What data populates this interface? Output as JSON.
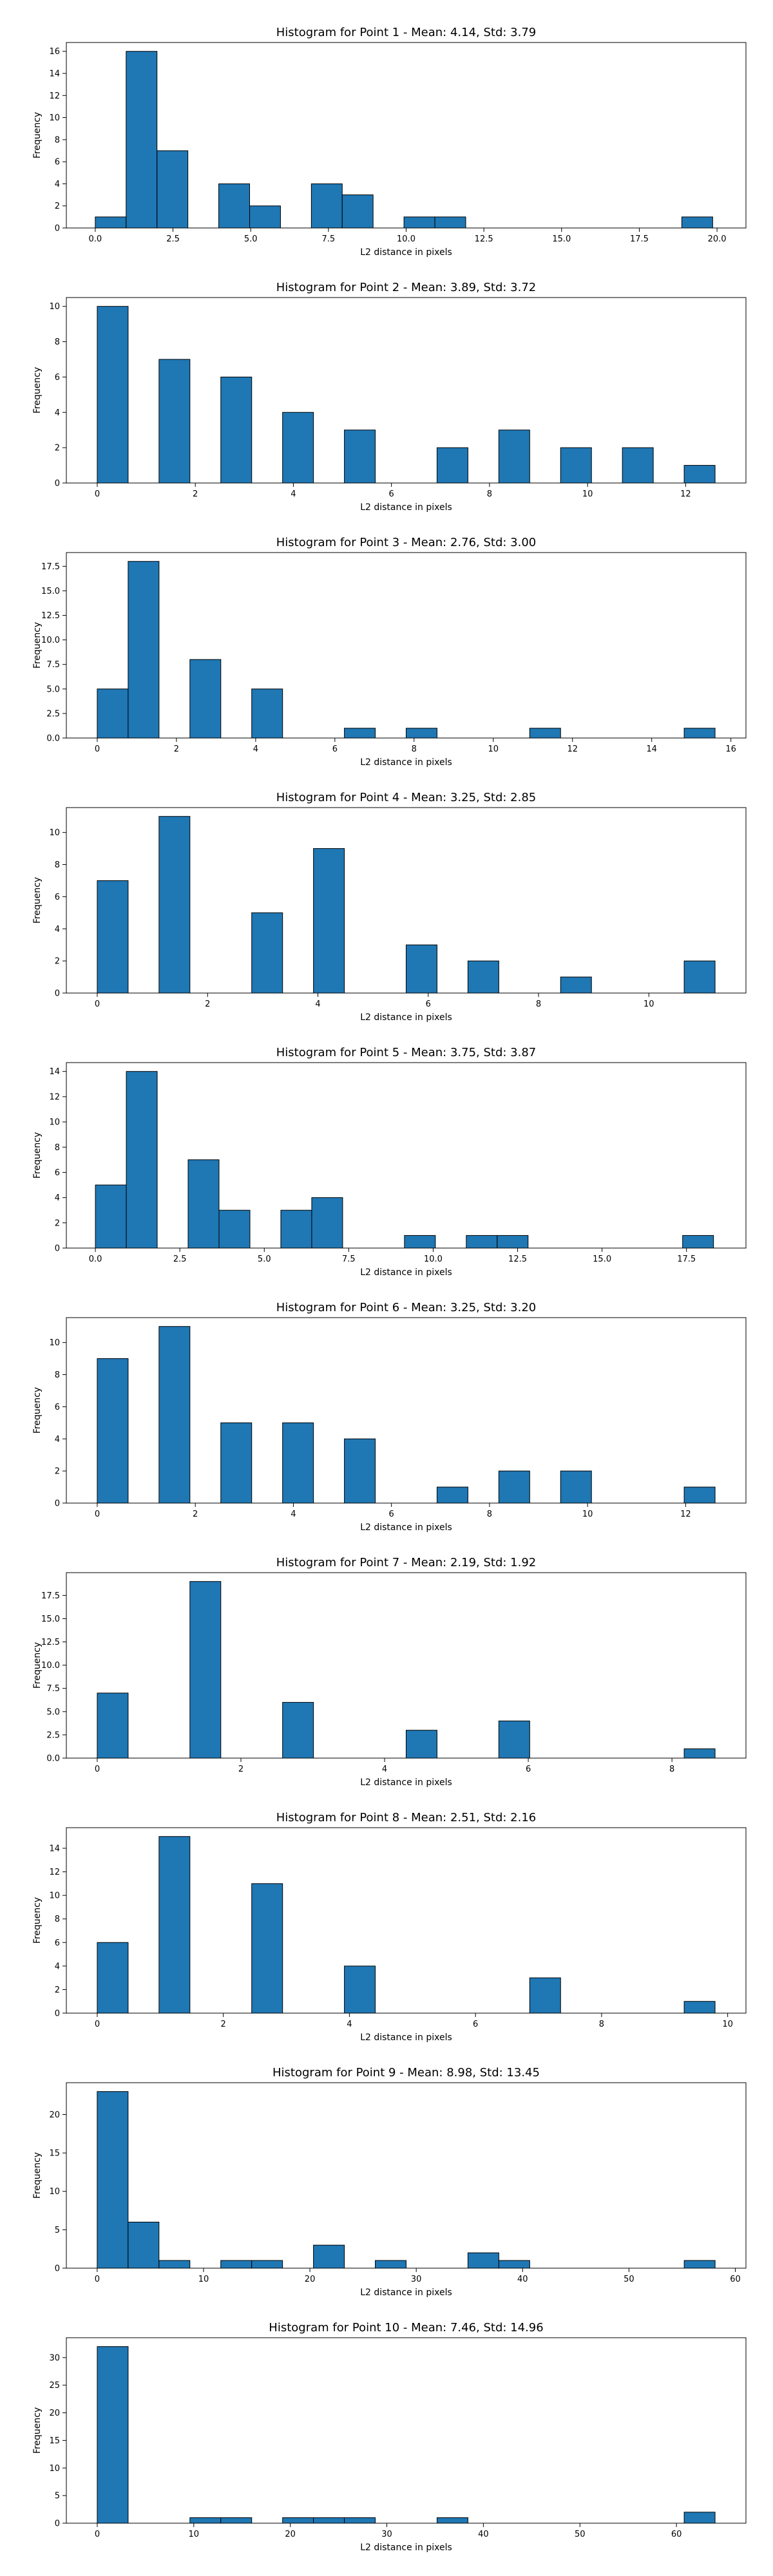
{
  "colors": {
    "bar_fill": "#1f77b4",
    "bar_edge": "#000000",
    "background": "#ffffff"
  },
  "chart_data": [
    {
      "type": "bar",
      "title": "Histogram for Point 1 - Mean: 4.14, Std: 3.79",
      "xlabel": "L2 distance in pixels",
      "ylabel": "Frequency",
      "xlim": [
        -0.93,
        20.93
      ],
      "ylim": [
        0,
        16.8
      ],
      "xticks": [
        0.0,
        2.5,
        5.0,
        7.5,
        10.0,
        12.5,
        15.0,
        17.5,
        20.0
      ],
      "xtick_labels": [
        "0.0",
        "2.5",
        "5.0",
        "7.5",
        "10.0",
        "12.5",
        "15.0",
        "17.5",
        "20.0"
      ],
      "yticks": [
        0,
        2,
        4,
        6,
        8,
        10,
        12,
        14,
        16
      ],
      "ytick_labels": [
        "0",
        "2",
        "4",
        "6",
        "8",
        "10",
        "12",
        "14",
        "16"
      ],
      "bin_start": 0.0,
      "bin_width": 0.993,
      "counts": [
        1,
        16,
        7,
        0,
        4,
        2,
        0,
        4,
        3,
        0,
        1,
        1,
        0,
        0,
        0,
        0,
        0,
        0,
        0,
        1
      ]
    },
    {
      "type": "bar",
      "title": "Histogram for Point 2 - Mean: 3.89, Std: 3.72",
      "xlabel": "L2 distance in pixels",
      "ylabel": "Frequency",
      "xlim": [
        -0.63,
        13.23
      ],
      "ylim": [
        0,
        10.5
      ],
      "xticks": [
        0,
        2,
        4,
        6,
        8,
        10,
        12
      ],
      "xtick_labels": [
        "0",
        "2",
        "4",
        "6",
        "8",
        "10",
        "12"
      ],
      "yticks": [
        0,
        2,
        4,
        6,
        8,
        10
      ],
      "ytick_labels": [
        "0",
        "2",
        "4",
        "6",
        "8",
        "10"
      ],
      "bin_start": 0.0,
      "bin_width": 0.63,
      "counts": [
        10,
        0,
        7,
        0,
        6,
        0,
        4,
        0,
        3,
        0,
        0,
        2,
        0,
        3,
        0,
        2,
        0,
        2,
        0,
        1
      ]
    },
    {
      "type": "bar",
      "title": "Histogram for Point 3 - Mean: 2.76, Std: 3.00",
      "xlabel": "L2 distance in pixels",
      "ylabel": "Frequency",
      "xlim": [
        -0.78,
        16.38
      ],
      "ylim": [
        0,
        18.9
      ],
      "xticks": [
        0,
        2,
        4,
        6,
        8,
        10,
        12,
        14,
        16
      ],
      "xtick_labels": [
        "0",
        "2",
        "4",
        "6",
        "8",
        "10",
        "12",
        "14",
        "16"
      ],
      "yticks": [
        0,
        2.5,
        5,
        7.5,
        10,
        12.5,
        15,
        17.5
      ],
      "ytick_labels": [
        "0.0",
        "2.5",
        "5.0",
        "7.5",
        "10.0",
        "12.5",
        "15.0",
        "17.5"
      ],
      "bin_start": 0.0,
      "bin_width": 0.78,
      "counts": [
        5,
        18,
        0,
        8,
        0,
        5,
        0,
        0,
        1,
        0,
        1,
        0,
        0,
        0,
        1,
        0,
        0,
        0,
        0,
        1
      ]
    },
    {
      "type": "bar",
      "title": "Histogram for Point 4 - Mean: 3.25, Std: 2.85",
      "xlabel": "L2 distance in pixels",
      "ylabel": "Frequency",
      "xlim": [
        -0.56,
        11.76
      ],
      "ylim": [
        0,
        11.55
      ],
      "xticks": [
        0,
        2,
        4,
        6,
        8,
        10
      ],
      "xtick_labels": [
        "0",
        "2",
        "4",
        "6",
        "8",
        "10"
      ],
      "yticks": [
        0,
        2,
        4,
        6,
        8,
        10
      ],
      "ytick_labels": [
        "0",
        "2",
        "4",
        "6",
        "8",
        "10"
      ],
      "bin_start": 0.0,
      "bin_width": 0.56,
      "counts": [
        7,
        0,
        11,
        0,
        0,
        5,
        0,
        9,
        0,
        0,
        3,
        0,
        2,
        0,
        0,
        1,
        0,
        0,
        0,
        2
      ]
    },
    {
      "type": "bar",
      "title": "Histogram for Point 5 - Mean: 3.75, Std: 3.87",
      "xlabel": "L2 distance in pixels",
      "ylabel": "Frequency",
      "xlim": [
        -0.86,
        19.26
      ],
      "ylim": [
        0,
        14.7
      ],
      "xticks": [
        0.0,
        2.5,
        5.0,
        7.5,
        10.0,
        12.5,
        15.0,
        17.5
      ],
      "xtick_labels": [
        "0.0",
        "2.5",
        "5.0",
        "7.5",
        "10.0",
        "12.5",
        "15.0",
        "17.5"
      ],
      "yticks": [
        0,
        2,
        4,
        6,
        8,
        10,
        12,
        14
      ],
      "ytick_labels": [
        "0",
        "2",
        "4",
        "6",
        "8",
        "10",
        "12",
        "14"
      ],
      "bin_start": 0.0,
      "bin_width": 0.915,
      "counts": [
        5,
        14,
        0,
        7,
        3,
        0,
        3,
        4,
        0,
        0,
        1,
        0,
        1,
        1,
        0,
        0,
        0,
        0,
        0,
        1
      ]
    },
    {
      "type": "bar",
      "title": "Histogram for Point 6 - Mean: 3.25, Std: 3.20",
      "xlabel": "L2 distance in pixels",
      "ylabel": "Frequency",
      "xlim": [
        -0.63,
        13.23
      ],
      "ylim": [
        0,
        11.55
      ],
      "xticks": [
        0,
        2,
        4,
        6,
        8,
        10,
        12
      ],
      "xtick_labels": [
        "0",
        "2",
        "4",
        "6",
        "8",
        "10",
        "12"
      ],
      "yticks": [
        0,
        2,
        4,
        6,
        8,
        10
      ],
      "ytick_labels": [
        "0",
        "2",
        "4",
        "6",
        "8",
        "10"
      ],
      "bin_start": 0.0,
      "bin_width": 0.63,
      "counts": [
        9,
        0,
        11,
        0,
        5,
        0,
        5,
        0,
        4,
        0,
        0,
        1,
        0,
        2,
        0,
        2,
        0,
        0,
        0,
        1
      ]
    },
    {
      "type": "bar",
      "title": "Histogram for Point 7 - Mean: 2.19, Std: 1.92",
      "xlabel": "L2 distance in pixels",
      "ylabel": "Frequency",
      "xlim": [
        -0.43,
        9.03
      ],
      "ylim": [
        0,
        19.95
      ],
      "xticks": [
        0,
        2,
        4,
        6,
        8
      ],
      "xtick_labels": [
        "0",
        "2",
        "4",
        "6",
        "8"
      ],
      "yticks": [
        0,
        2.5,
        5,
        7.5,
        10,
        12.5,
        15,
        17.5
      ],
      "ytick_labels": [
        "0.0",
        "2.5",
        "5.0",
        "7.5",
        "10.0",
        "12.5",
        "15.0",
        "17.5"
      ],
      "bin_start": 0.0,
      "bin_width": 0.43,
      "counts": [
        7,
        0,
        0,
        19,
        0,
        0,
        6,
        0,
        0,
        0,
        3,
        0,
        0,
        4,
        0,
        0,
        0,
        0,
        0,
        1
      ]
    },
    {
      "type": "bar",
      "title": "Histogram for Point 8 - Mean: 2.51, Std: 2.16",
      "xlabel": "L2 distance in pixels",
      "ylabel": "Frequency",
      "xlim": [
        -0.49,
        10.29
      ],
      "ylim": [
        0,
        15.75
      ],
      "xticks": [
        0,
        2,
        4,
        6,
        8,
        10
      ],
      "xtick_labels": [
        "0",
        "2",
        "4",
        "6",
        "8",
        "10"
      ],
      "yticks": [
        0,
        2,
        4,
        6,
        8,
        10,
        12,
        14
      ],
      "ytick_labels": [
        "0",
        "2",
        "4",
        "6",
        "8",
        "10",
        "12",
        "14"
      ],
      "bin_start": 0.0,
      "bin_width": 0.49,
      "counts": [
        6,
        0,
        15,
        0,
        0,
        11,
        0,
        0,
        4,
        0,
        0,
        0,
        0,
        0,
        3,
        0,
        0,
        0,
        0,
        1
      ]
    },
    {
      "type": "bar",
      "title": "Histogram for Point 9 - Mean: 8.98, Std: 13.45",
      "xlabel": "L2 distance in pixels",
      "ylabel": "Frequency",
      "xlim": [
        -2.9,
        61.0
      ],
      "ylim": [
        0,
        24.15
      ],
      "xticks": [
        0,
        10,
        20,
        30,
        40,
        50,
        60
      ],
      "xtick_labels": [
        "0",
        "10",
        "20",
        "30",
        "40",
        "50",
        "60"
      ],
      "yticks": [
        0,
        5,
        10,
        15,
        20
      ],
      "ytick_labels": [
        "0",
        "5",
        "10",
        "15",
        "20"
      ],
      "bin_start": 0.0,
      "bin_width": 2.905,
      "counts": [
        23,
        6,
        1,
        0,
        1,
        1,
        0,
        3,
        0,
        1,
        0,
        0,
        2,
        1,
        0,
        0,
        0,
        0,
        0,
        1
      ]
    },
    {
      "type": "bar",
      "title": "Histogram for Point 10 - Mean: 7.46, Std: 14.96",
      "xlabel": "L2 distance in pixels",
      "ylabel": "Frequency",
      "xlim": [
        -3.2,
        67.2
      ],
      "ylim": [
        0,
        33.6
      ],
      "xticks": [
        0,
        10,
        20,
        30,
        40,
        50,
        60
      ],
      "xtick_labels": [
        "0",
        "10",
        "20",
        "30",
        "40",
        "50",
        "60"
      ],
      "yticks": [
        0,
        5,
        10,
        15,
        20,
        25,
        30
      ],
      "ytick_labels": [
        "0",
        "5",
        "10",
        "15",
        "20",
        "25",
        "30"
      ],
      "bin_start": 0.0,
      "bin_width": 3.2,
      "counts": [
        32,
        0,
        0,
        1,
        1,
        0,
        1,
        1,
        1,
        0,
        0,
        1,
        0,
        0,
        0,
        0,
        0,
        0,
        0,
        2
      ]
    }
  ]
}
